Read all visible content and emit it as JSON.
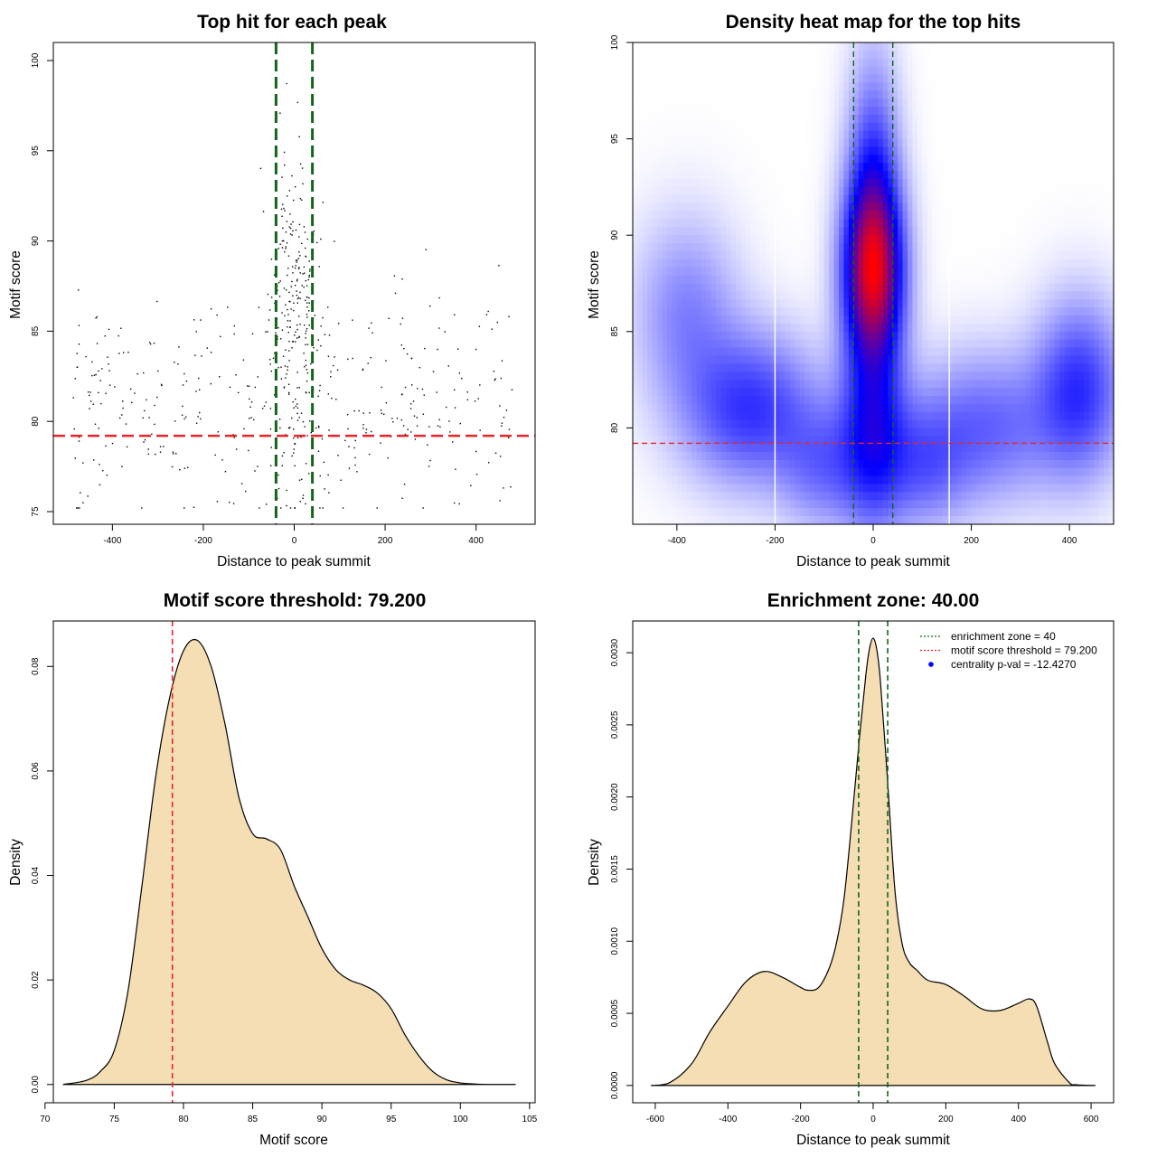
{
  "colors": {
    "threshold_line": "#e8242a",
    "zone_line": "#11661a",
    "density_fill": "#f5deb3",
    "heat_low": "#ffffff",
    "heat_mid": "#0000ff",
    "heat_high": "#ff0000",
    "point": "#000000"
  },
  "chart_data": [
    {
      "id": "scatter",
      "type": "scatter",
      "title": "Top hit for each peak",
      "xlabel": "Distance to peak summit",
      "ylabel": "Motif score",
      "xlim": [
        -530,
        530
      ],
      "ylim": [
        74.3,
        101.0
      ],
      "xticks": [
        -400,
        -200,
        0,
        200,
        400
      ],
      "yticks": [
        75,
        80,
        85,
        90,
        95,
        100
      ],
      "zone_lines": [
        -40,
        40
      ],
      "threshold": 79.2,
      "n_points": 640,
      "notes": "scatter of top motif hits; points concentrated near summit"
    },
    {
      "id": "heatmap",
      "type": "heatmap",
      "title": "Density heat map for the top hits",
      "xlabel": "Distance to peak summit",
      "ylabel": "Motif score",
      "xlim": [
        -490,
        490
      ],
      "ylim": [
        75.0,
        100.0
      ],
      "xticks": [
        -400,
        -200,
        0,
        200,
        400
      ],
      "yticks": [
        80,
        85,
        90,
        95,
        100
      ],
      "zone_lines": [
        -40,
        40
      ],
      "threshold": 79.2,
      "white_lines": [
        -200,
        155
      ],
      "peak": {
        "x": 0,
        "y": 88
      }
    },
    {
      "id": "score_density",
      "type": "area",
      "title": "Motif score threshold: 79.200",
      "xlabel": "Motif score",
      "ylabel": "Density",
      "xlim": [
        70.6,
        105.4
      ],
      "ylim": [
        -0.0035,
        0.0887
      ],
      "xticks": [
        70,
        75,
        80,
        85,
        90,
        95,
        100,
        105
      ],
      "yticks": [
        0.0,
        0.02,
        0.04,
        0.06,
        0.08
      ],
      "ytick_labels": [
        "0.00",
        "0.02",
        "0.04",
        "0.06",
        "0.08"
      ],
      "threshold": 79.2,
      "curve": {
        "x": [
          71.3,
          73,
          74,
          75,
          76,
          77,
          78,
          79,
          80,
          81,
          82,
          83,
          84,
          85,
          86,
          87,
          88,
          89,
          90,
          91,
          92,
          93,
          94,
          95,
          96,
          97,
          98,
          99,
          100,
          101,
          102,
          103,
          104
        ],
        "y": [
          0,
          0.0008,
          0.0025,
          0.0065,
          0.018,
          0.038,
          0.059,
          0.074,
          0.083,
          0.085,
          0.08,
          0.069,
          0.055,
          0.048,
          0.047,
          0.045,
          0.038,
          0.032,
          0.026,
          0.022,
          0.02,
          0.019,
          0.0175,
          0.0145,
          0.0095,
          0.0055,
          0.0025,
          0.0009,
          0.0003,
          0.0001,
          0,
          0,
          0
        ]
      }
    },
    {
      "id": "distance_density",
      "type": "area",
      "title": "Enrichment zone: 40.00",
      "xlabel": "Distance to peak summit",
      "ylabel": "Density",
      "xlim": [
        -662,
        662
      ],
      "ylim": [
        -0.00012,
        0.00322
      ],
      "xticks": [
        -600,
        -400,
        -200,
        0,
        200,
        400,
        600
      ],
      "yticks": [
        0.0,
        0.0005,
        0.001,
        0.0015,
        0.002,
        0.0025,
        0.003
      ],
      "ytick_labels": [
        "0.0000",
        "0.0005",
        "0.0010",
        "0.0015",
        "0.0020",
        "0.0025",
        "0.0030"
      ],
      "zone_lines": [
        -40,
        40
      ],
      "curve": {
        "x": [
          -612,
          -560,
          -500,
          -450,
          -400,
          -350,
          -300,
          -250,
          -200,
          -180,
          -150,
          -120,
          -100,
          -80,
          -60,
          -40,
          -20,
          -10,
          0,
          10,
          20,
          40,
          60,
          80,
          100,
          120,
          150,
          200,
          250,
          300,
          350,
          400,
          430,
          450,
          480,
          500,
          540,
          560,
          612
        ],
        "y": [
          0,
          2e-05,
          0.00015,
          0.00037,
          0.00055,
          0.00072,
          0.00079,
          0.00075,
          0.00068,
          0.00066,
          0.00068,
          0.00082,
          0.001,
          0.0013,
          0.0018,
          0.00235,
          0.00285,
          0.00303,
          0.0031,
          0.00302,
          0.0028,
          0.0021,
          0.00135,
          0.00098,
          0.00085,
          0.0008,
          0.00073,
          0.0007,
          0.00062,
          0.00053,
          0.00052,
          0.00057,
          0.0006,
          0.00055,
          0.0003,
          0.00015,
          2e-05,
          5e-06,
          0
        ]
      },
      "legend": {
        "position": "top-right",
        "entries": [
          {
            "label": "enrichment zone = 40",
            "style": "dotted",
            "color": "#11661a"
          },
          {
            "label": "motif score threshold = 79.200",
            "style": "dotted",
            "color": "#e8242a"
          },
          {
            "label": "centrality p-val = -12.4270",
            "style": "point",
            "color": "#0000ff"
          }
        ]
      }
    }
  ]
}
